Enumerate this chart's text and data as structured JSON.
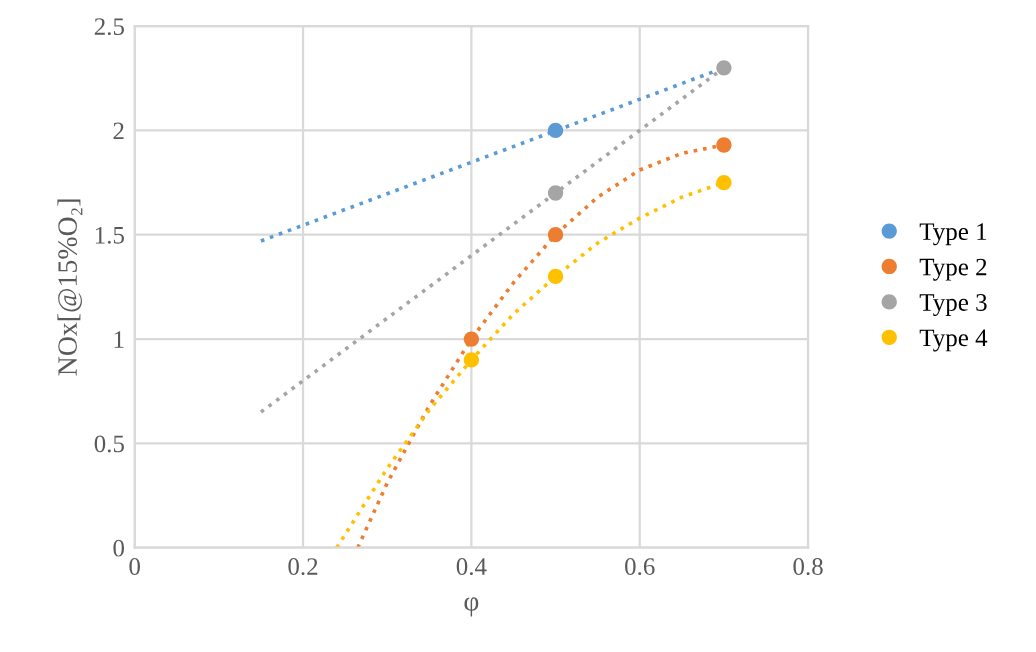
{
  "chart_data": {
    "type": "scatter",
    "xlabel": "φ",
    "ylabel": "NOx[@15%O₂]",
    "xlim": [
      0,
      0.8
    ],
    "ylim": [
      0,
      2.5
    ],
    "xticks": [
      0,
      0.2,
      0.4,
      0.6,
      0.8
    ],
    "yticks": [
      0,
      0.5,
      1,
      1.5,
      2,
      2.5
    ],
    "grid": true,
    "legend": "right",
    "marker": "circle",
    "series": [
      {
        "name": "Type 1",
        "color": "#5b9bd5",
        "x": [
          0.5
        ],
        "values": [
          2.0
        ]
      },
      {
        "name": "Type 2",
        "color": "#ed7d31",
        "x": [
          0.4,
          0.5,
          0.7
        ],
        "values": [
          1.0,
          1.5,
          1.93
        ]
      },
      {
        "name": "Type 3",
        "color": "#a5a5a5",
        "x": [
          0.5,
          0.7
        ],
        "values": [
          1.7,
          2.3
        ]
      },
      {
        "name": "Type 4",
        "color": "#ffc000",
        "x": [
          0.4,
          0.5,
          0.7
        ],
        "values": [
          0.9,
          1.3,
          1.75
        ]
      },
      {
        "type": "line",
        "marker": "none",
        "line_style": "dotted",
        "color": "#5b9bd5",
        "x": [
          0.15,
          0.7
        ],
        "values": [
          1.47,
          2.3
        ]
      },
      {
        "type": "line",
        "marker": "none",
        "line_style": "dotted",
        "color": "#ed7d31",
        "x": [
          0.265,
          0.3,
          0.35,
          0.4,
          0.45,
          0.5,
          0.55,
          0.6,
          0.65,
          0.7
        ],
        "values": [
          0,
          0.31,
          0.68,
          1.0,
          1.27,
          1.5,
          1.68,
          1.81,
          1.89,
          1.93
        ]
      },
      {
        "type": "line",
        "marker": "none",
        "line_style": "dotted",
        "color": "#a5a5a5",
        "x": [
          0.15,
          0.7
        ],
        "values": [
          0.65,
          2.3
        ]
      },
      {
        "type": "line",
        "marker": "none",
        "line_style": "dotted",
        "color": "#ffc000",
        "x": [
          0.24,
          0.3,
          0.35,
          0.4,
          0.45,
          0.5,
          0.55,
          0.6,
          0.65,
          0.7
        ],
        "values": [
          0,
          0.38,
          0.66,
          0.9,
          1.12,
          1.3,
          1.46,
          1.58,
          1.68,
          1.75
        ]
      }
    ]
  }
}
